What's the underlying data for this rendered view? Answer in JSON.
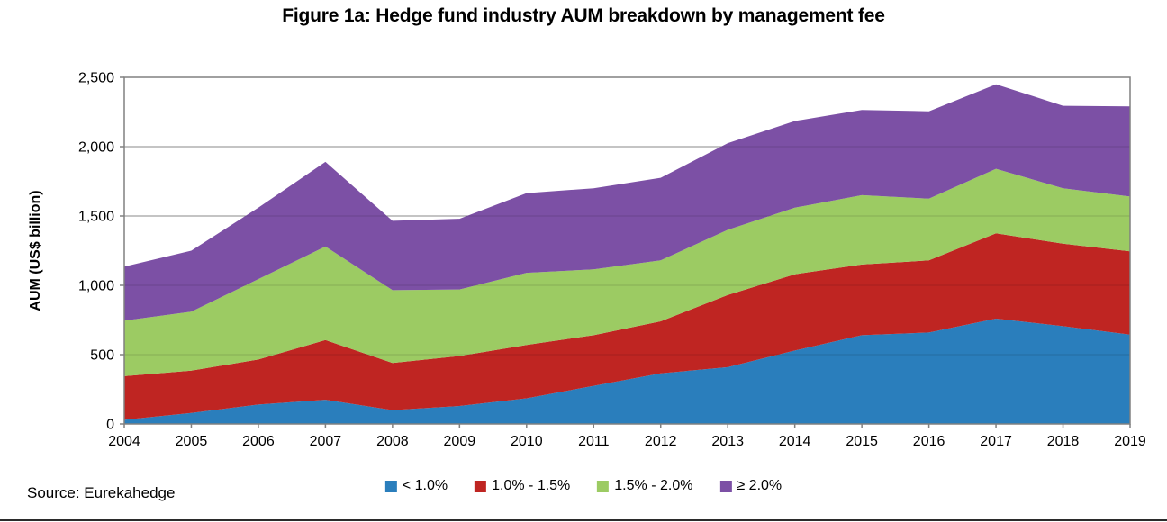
{
  "title": "Figure 1a: Hedge fund industry AUM breakdown by management fee",
  "source": "Source: Eurekahedge",
  "chart_data": {
    "type": "area",
    "stacked": true,
    "title": "Figure 1a: Hedge fund industry AUM breakdown by management fee",
    "xlabel": "",
    "ylabel": "AUM (US$ billion)",
    "ylim": [
      0,
      2500
    ],
    "ytick_step": 500,
    "ytick_labels": [
      "0",
      "500",
      "1,000",
      "1,500",
      "2,000",
      "2,500"
    ],
    "grid": true,
    "legend_position": "bottom",
    "x": [
      2004,
      2005,
      2006,
      2007,
      2008,
      2009,
      2010,
      2011,
      2012,
      2013,
      2014,
      2015,
      2016,
      2017,
      2018,
      2019
    ],
    "series": [
      {
        "name": "< 1.0%",
        "color": "#2A7EBC",
        "values": [
          30,
          80,
          140,
          175,
          100,
          130,
          185,
          275,
          365,
          410,
          530,
          640,
          660,
          760,
          705,
          645
        ]
      },
      {
        "name": "1.0% - 1.5%",
        "color": "#BF2522",
        "values": [
          315,
          305,
          325,
          430,
          340,
          360,
          385,
          365,
          375,
          520,
          550,
          510,
          520,
          615,
          595,
          600
        ]
      },
      {
        "name": "1.5% - 2.0%",
        "color": "#9CCB63",
        "values": [
          400,
          425,
          580,
          675,
          525,
          480,
          520,
          475,
          440,
          470,
          480,
          500,
          445,
          465,
          400,
          395
        ]
      },
      {
        "name": "≥ 2.0%",
        "color": "#7C50A5",
        "values": [
          390,
          440,
          515,
          610,
          500,
          510,
          575,
          585,
          595,
          625,
          625,
          615,
          630,
          610,
          595,
          650
        ]
      }
    ],
    "totals": [
      1135,
      1250,
      1560,
      1890,
      1465,
      1480,
      1665,
      1700,
      1775,
      2025,
      2185,
      2265,
      2255,
      2450,
      2295,
      2290
    ],
    "colors": {
      "grid": "#A0A0A0",
      "axis": "#808080",
      "text": "#000000"
    }
  }
}
